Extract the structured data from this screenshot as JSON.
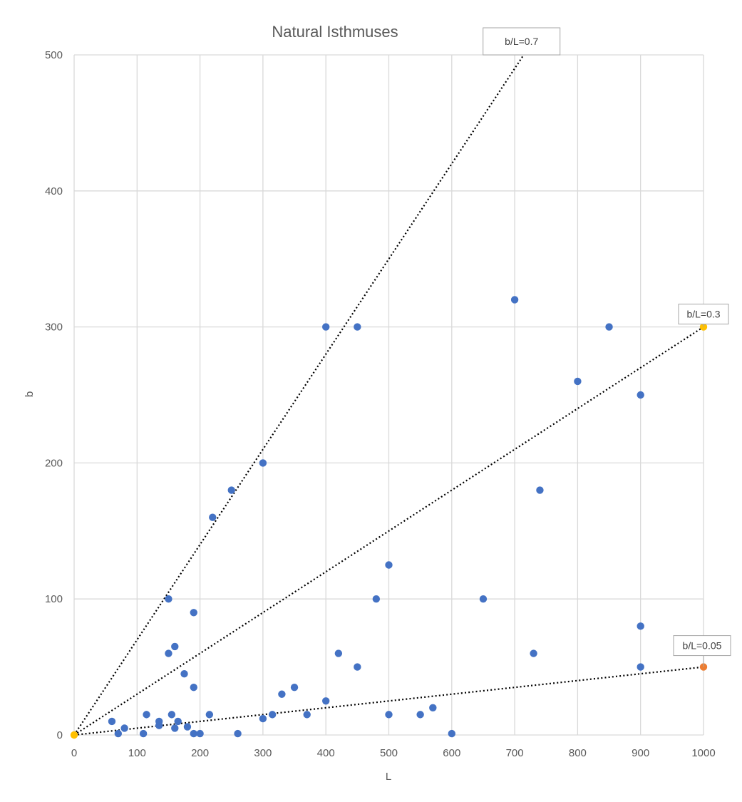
{
  "chart_data": {
    "type": "scatter",
    "title": "Natural Isthmuses",
    "xlabel": "L",
    "ylabel": "b",
    "xlim": [
      0,
      1000
    ],
    "ylim": [
      0,
      500
    ],
    "x_ticks": [
      "0",
      "100",
      "200",
      "300",
      "400",
      "500",
      "600",
      "700",
      "800",
      "900",
      "1000"
    ],
    "y_ticks": [
      "0",
      "100",
      "200",
      "300",
      "400",
      "500"
    ],
    "grid": true,
    "legend": "none",
    "series": [
      {
        "color": "#4472C4",
        "points": [
          [
            60,
            10
          ],
          [
            70,
            1
          ],
          [
            80,
            5
          ],
          [
            110,
            1
          ],
          [
            115,
            15
          ],
          [
            135,
            7
          ],
          [
            135,
            10
          ],
          [
            150,
            100
          ],
          [
            150,
            60
          ],
          [
            155,
            15
          ],
          [
            160,
            65
          ],
          [
            160,
            5
          ],
          [
            165,
            10
          ],
          [
            175,
            45
          ],
          [
            180,
            6
          ],
          [
            190,
            90
          ],
          [
            190,
            35
          ],
          [
            190,
            1
          ],
          [
            200,
            1
          ],
          [
            215,
            15
          ],
          [
            220,
            160
          ],
          [
            250,
            180
          ],
          [
            260,
            1
          ],
          [
            300,
            200
          ],
          [
            300,
            12
          ],
          [
            315,
            15
          ],
          [
            330,
            30
          ],
          [
            350,
            35
          ],
          [
            370,
            15
          ],
          [
            400,
            300
          ],
          [
            400,
            25
          ],
          [
            420,
            60
          ],
          [
            450,
            300
          ],
          [
            450,
            50
          ],
          [
            480,
            100
          ],
          [
            500,
            125
          ],
          [
            500,
            15
          ],
          [
            550,
            15
          ],
          [
            570,
            20
          ],
          [
            600,
            1
          ],
          [
            650,
            100
          ],
          [
            700,
            320
          ],
          [
            730,
            60
          ],
          [
            740,
            180
          ],
          [
            800,
            260
          ],
          [
            850,
            300
          ],
          [
            900,
            250
          ],
          [
            900,
            80
          ],
          [
            900,
            50
          ]
        ]
      },
      {
        "color": "#FFC000",
        "points": [
          [
            0,
            0
          ],
          [
            1000,
            300
          ]
        ]
      },
      {
        "color": "#ED7D31",
        "points": [
          [
            1000,
            50
          ]
        ]
      }
    ],
    "reference_lines": [
      {
        "label": "b/L=0.7",
        "ratio": 0.7
      },
      {
        "label": "b/L=0.3",
        "ratio": 0.3
      },
      {
        "label": "b/L=0.05",
        "ratio": 0.05
      }
    ]
  }
}
